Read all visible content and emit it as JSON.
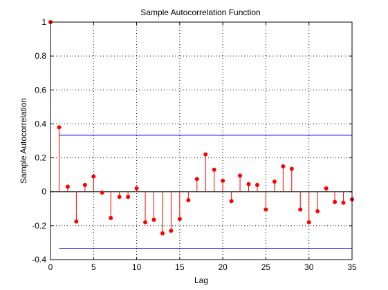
{
  "chart_data": {
    "type": "stem",
    "title": "Sample Autocorrelation Function",
    "xlabel": "Lag",
    "ylabel": "Sample Autocorrelation",
    "xlim": [
      0,
      35
    ],
    "ylim": [
      -0.4,
      1
    ],
    "xticks": [
      "0",
      "5",
      "10",
      "15",
      "20",
      "25",
      "30",
      "35"
    ],
    "yticks": [
      "-0.4",
      "-0.2",
      "0",
      "0.2",
      "0.4",
      "0.6",
      "0.8",
      "1"
    ],
    "grid": true,
    "lags": [
      0,
      1,
      2,
      3,
      4,
      5,
      6,
      7,
      8,
      9,
      10,
      11,
      12,
      13,
      14,
      15,
      16,
      17,
      18,
      19,
      20,
      21,
      22,
      23,
      24,
      25,
      26,
      27,
      28,
      29,
      30,
      31,
      32,
      33,
      34,
      35
    ],
    "values": [
      1.0,
      0.38,
      0.03,
      -0.175,
      0.04,
      0.09,
      -0.005,
      -0.155,
      -0.03,
      -0.03,
      0.02,
      -0.18,
      -0.165,
      -0.245,
      -0.23,
      -0.16,
      -0.05,
      0.075,
      0.22,
      0.13,
      0.065,
      -0.055,
      0.095,
      0.045,
      0.04,
      -0.105,
      0.06,
      0.15,
      0.135,
      -0.105,
      -0.18,
      -0.115,
      0.02,
      -0.06,
      -0.065,
      -0.045
    ],
    "confidence_bounds": [
      0.333,
      -0.333
    ],
    "colors": {
      "stem": "#ff0000",
      "bounds": "#0000ff",
      "axes": "#000000"
    }
  }
}
